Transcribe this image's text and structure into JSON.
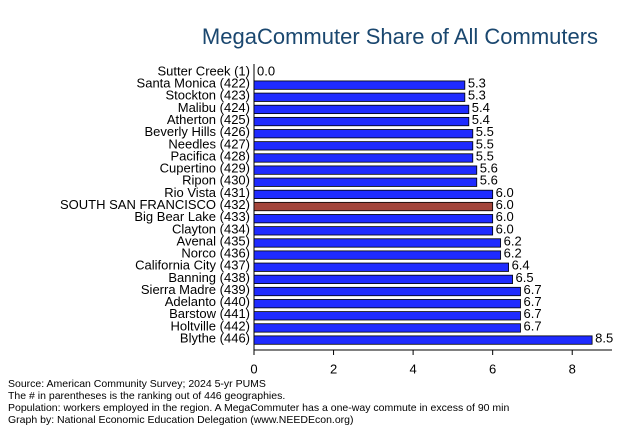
{
  "chart_data": {
    "type": "barh",
    "title": "MegaCommuter Share of All Commuters",
    "categories": [
      "Sutter Creek  (1)",
      "Santa Monica (422)",
      "Stockton (423)",
      "Malibu (424)",
      "Atherton (425)",
      "Beverly Hills (426)",
      "Needles (427)",
      "Pacifica (428)",
      "Cupertino (429)",
      "Ripon (430)",
      "Rio Vista (431)",
      "SOUTH SAN FRANCISCO (432)",
      "Big Bear Lake (433)",
      "Clayton (434)",
      "Avenal (435)",
      "Norco (436)",
      "California City (437)",
      "Banning (438)",
      "Sierra Madre (439)",
      "Adelanto (440)",
      "Barstow (441)",
      "Holtville (442)",
      "Blythe (446)"
    ],
    "values": [
      0,
      5.3,
      5.3,
      5.4,
      5.4,
      5.5,
      5.5,
      5.5,
      5.6,
      5.6,
      6.0,
      6.0,
      6.0,
      6.0,
      6.2,
      6.2,
      6.4,
      6.5,
      6.7,
      6.7,
      6.7,
      6.7,
      8.5
    ],
    "value_labels": [
      "0.0",
      "5.3",
      "5.3",
      "5.4",
      "5.4",
      "5.5",
      "5.5",
      "5.5",
      "5.6",
      "5.6",
      "6.0",
      "6.0",
      "6.0",
      "6.0",
      "6.2",
      "6.2",
      "6.4",
      "6.5",
      "6.7",
      "6.7",
      "6.7",
      "6.7",
      "8.5"
    ],
    "colors": [
      "#1f2bff",
      "#1f2bff",
      "#1f2bff",
      "#1f2bff",
      "#1f2bff",
      "#1f2bff",
      "#1f2bff",
      "#1f2bff",
      "#1f2bff",
      "#1f2bff",
      "#1f2bff",
      "#a3453b",
      "#1f2bff",
      "#1f2bff",
      "#1f2bff",
      "#1f2bff",
      "#1f2bff",
      "#1f2bff",
      "#1f2bff",
      "#1f2bff",
      "#1f2bff",
      "#1f2bff",
      "#1f2bff"
    ],
    "xlim": [
      0,
      9
    ],
    "xticks": [
      0,
      2,
      4,
      6,
      8
    ],
    "notes": [
      "Source: American Community Survey; 2024 5-yr PUMS",
      "The # in parentheses is the ranking out of 446 geographies.",
      "Population: workers employed in the region. A MegaCommuter has a one-way commute in excess of 90 min",
      "Graph by: National Economic Education Delegation (www.NEEDEcon.org)"
    ]
  }
}
